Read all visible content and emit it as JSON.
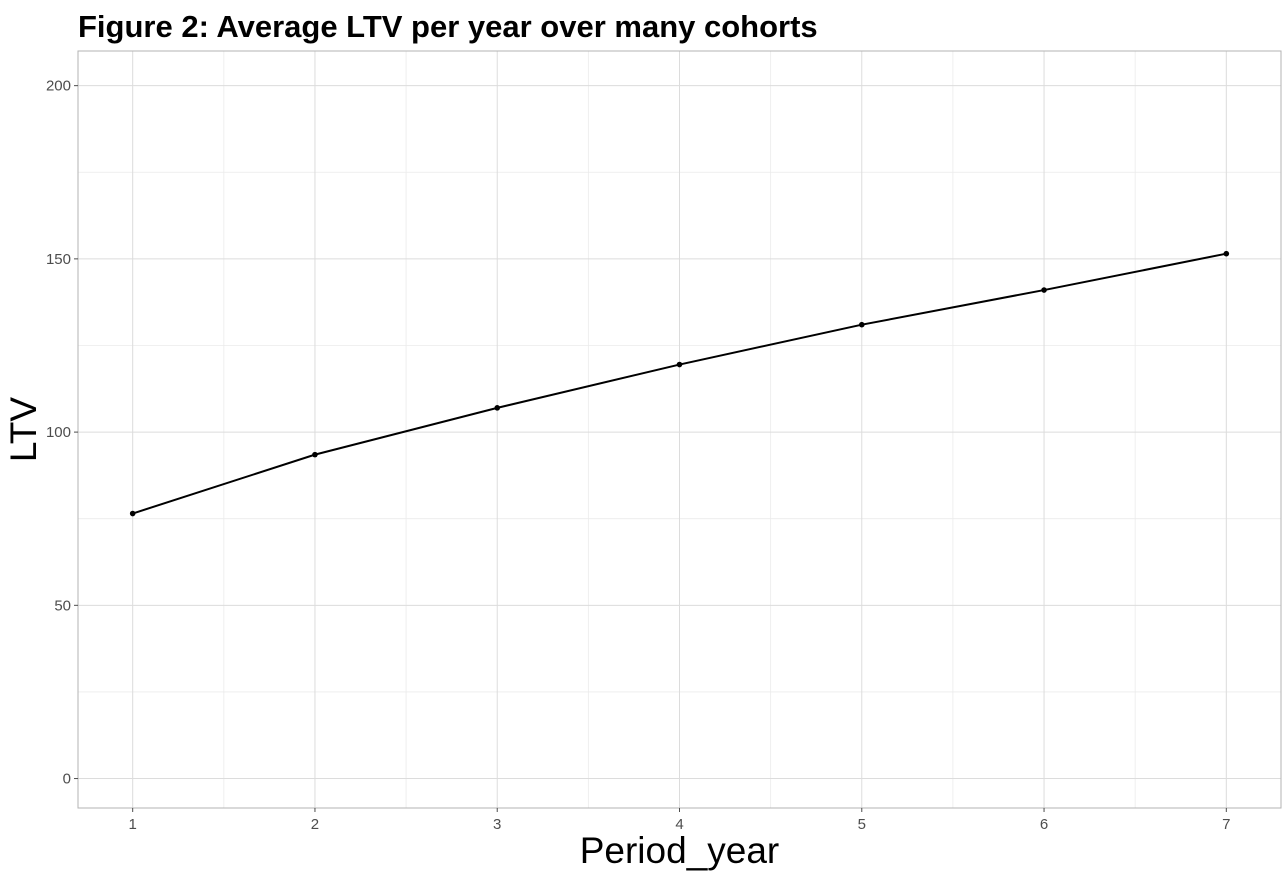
{
  "chart_data": {
    "type": "line",
    "title": "Figure 2: Average LTV per year over many cohorts",
    "xlabel": "Period_year",
    "ylabel": "LTV",
    "x": [
      1,
      2,
      3,
      4,
      5,
      6,
      7
    ],
    "series": [
      {
        "values": [
          76.5,
          93.5,
          107,
          119.5,
          131,
          141,
          151.5
        ]
      }
    ],
    "xlim": [
      0.7,
      7.3
    ],
    "ylim": [
      -8.5,
      210
    ],
    "x_ticks": [
      "1",
      "2",
      "3",
      "4",
      "5",
      "6",
      "7"
    ],
    "y_ticks": [
      "0",
      "50",
      "100",
      "150",
      "200"
    ],
    "grid": true,
    "legend": "none",
    "colors": {
      "line": "#000000",
      "grid": "#dcdcdc",
      "background": "#ffffff"
    }
  }
}
